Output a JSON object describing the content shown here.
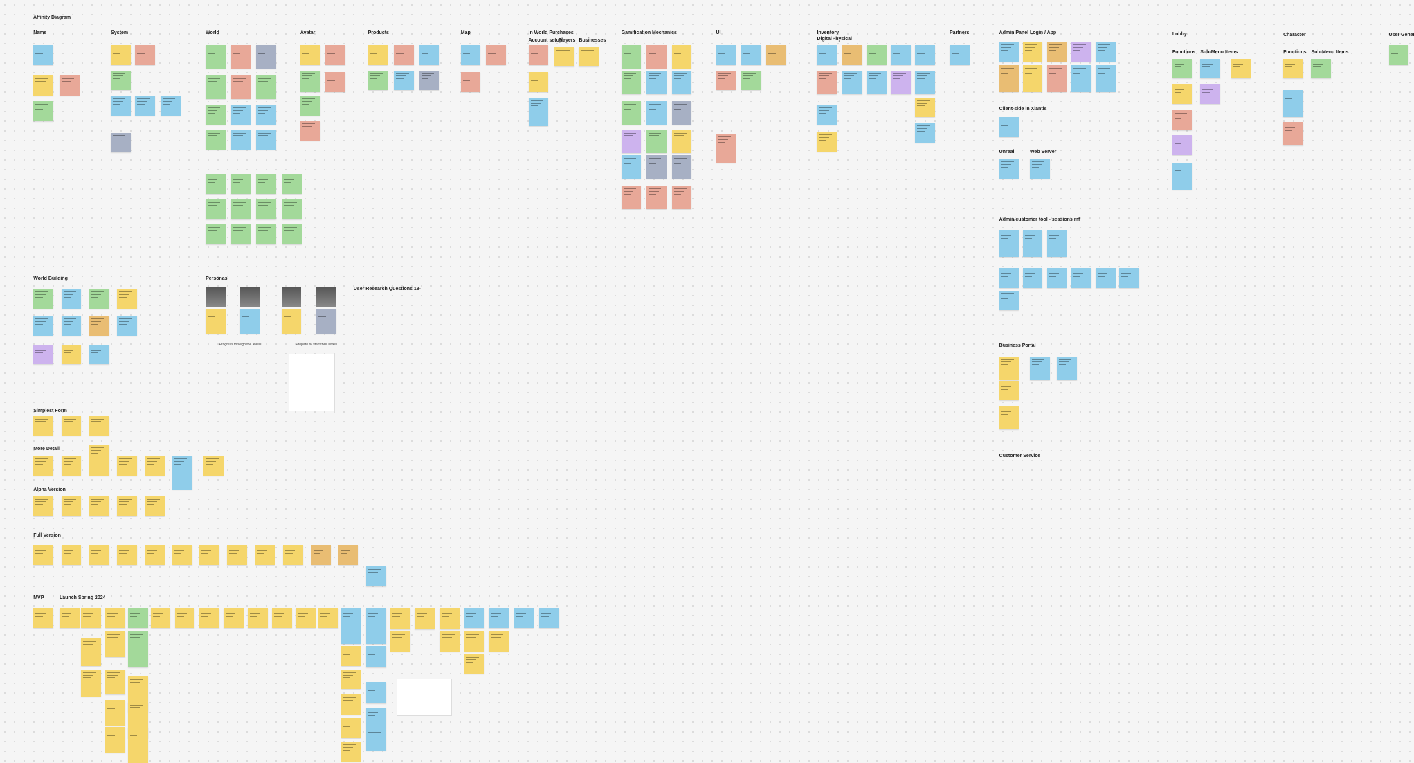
{
  "title": "Affinity Diagram",
  "sections": [
    "Name",
    "System",
    "World",
    "Avatar",
    "Products",
    "Map",
    "In World Purchases",
    "Account setup",
    "Players",
    "Businesses",
    "Gamification Mechanics",
    "UI",
    "Inventory",
    "Digital",
    "Physical",
    "Partners",
    "Admin Panel Login / App",
    "Lobby",
    "Functions",
    "Sub-Menu Items",
    "Character",
    "Functions",
    "Sub-Menu Items",
    "User Generated",
    "Client-side in Xlantis",
    "Unreal",
    "Web Server",
    "Admin/customer tool - sessions mf",
    "Business Portal",
    "Customer Service",
    "World Building",
    "Personas",
    "User Research Questions 18-",
    "Simplest Form",
    "More Detail",
    "Alpha Version",
    "Full Version",
    "MVP",
    "Launch Spring 2024"
  ],
  "captions": [
    "Progress through the levels",
    "Prepare to start their levels"
  ]
}
